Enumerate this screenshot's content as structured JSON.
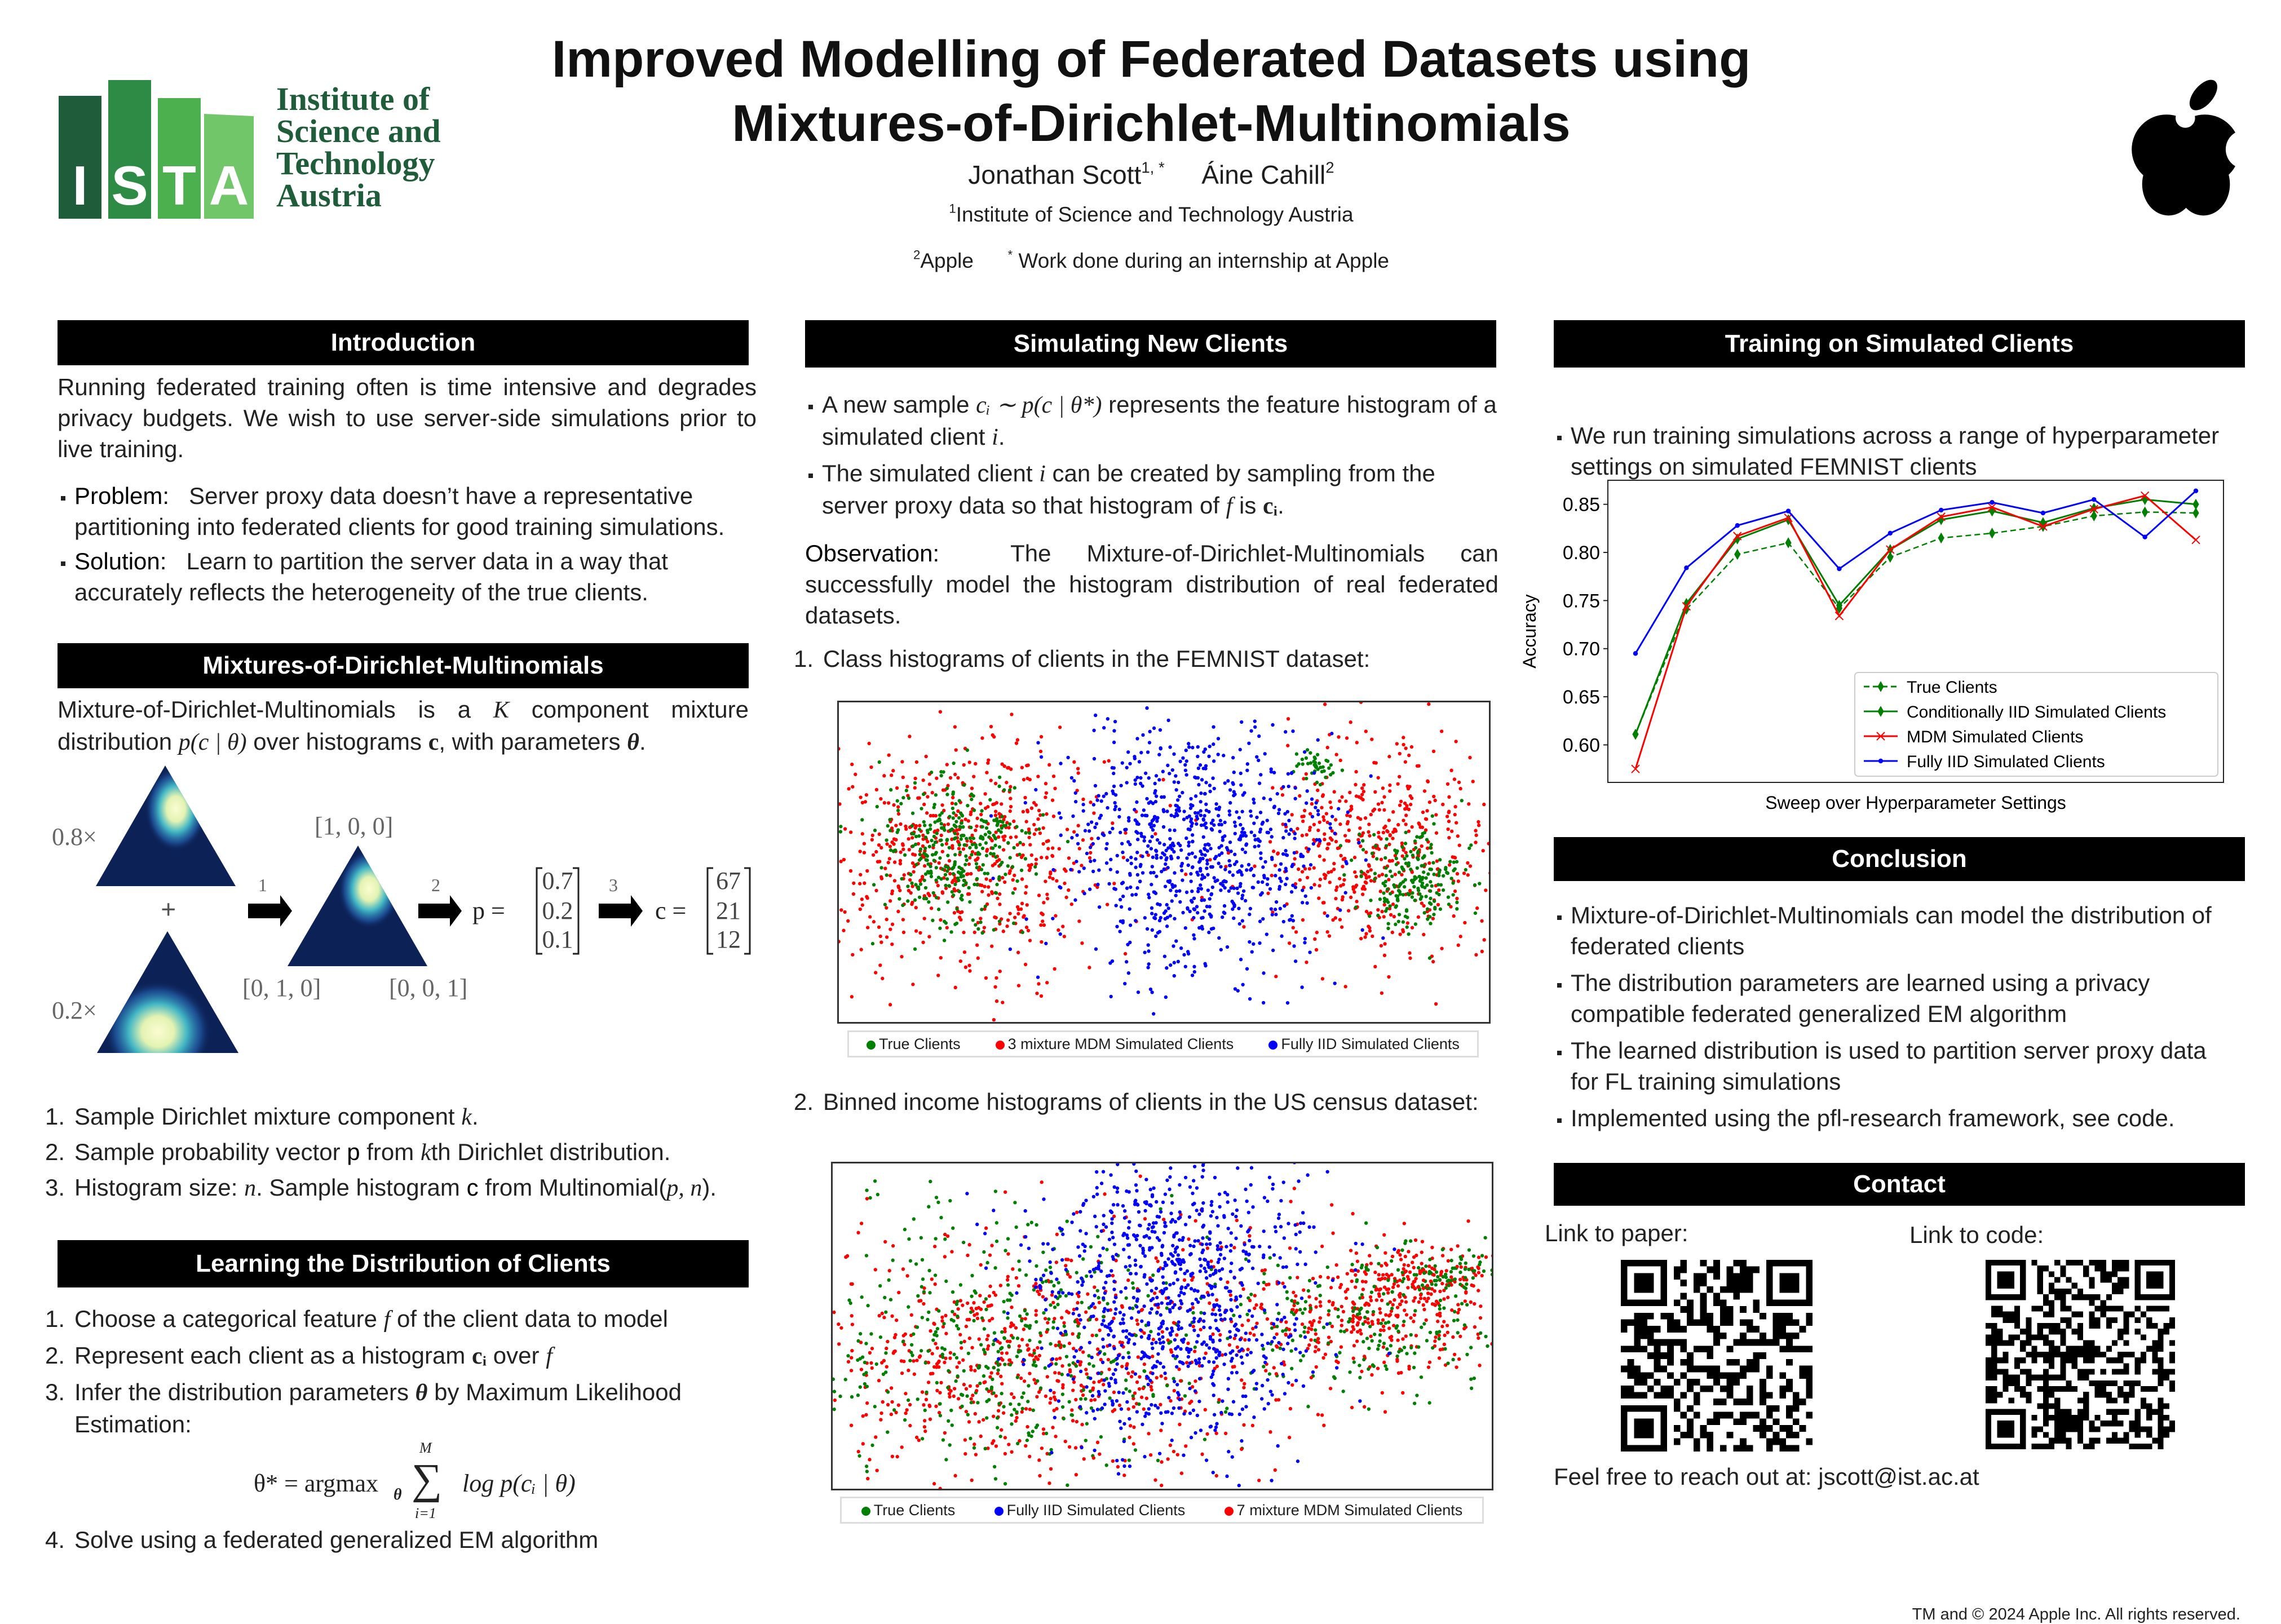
{
  "header": {
    "title_line1": "Improved Modelling of Federated Datasets using",
    "title_line2": "Mixtures-of-Dirichlet-Multinomials",
    "author1": "Jonathan Scott",
    "author1_sup": "1, *",
    "author2": "Áine Cahill",
    "author2_sup": "2",
    "affil1_sup": "1",
    "affil1": "Institute of Science and Technology Austria",
    "affil2_sup": "2",
    "affil2": "Apple",
    "note_sup": "*",
    "note": "Work done during an internship at Apple"
  },
  "logos": {
    "ista_letters": [
      "I",
      "S",
      "T",
      "A"
    ],
    "ista_name": [
      "Institute of",
      "Science and",
      "Technology",
      "Austria"
    ],
    "colors": {
      "dark": "#1f5c3a",
      "mid": "#2e8b45",
      "light": "#4cb04f",
      "lighter": "#72c66a"
    }
  },
  "intro": {
    "heading": "Introduction",
    "text": "Running federated training often is time intensive and degrades privacy budgets.  We wish to use server-side simulations prior to live training.",
    "problem_label": "Problem:",
    "problem_text": "Server proxy data doesn’t have a representative partitioning into federated clients for good training simulations.",
    "solution_label": "Solution:",
    "solution_text": "Learn to partition the server data in a way that accurately reflects the heterogeneity of the true clients."
  },
  "mdm": {
    "heading": "Mixtures-of-Dirichlet-Multinomials",
    "text_a": "Mixture-of-Dirichlet-Multinomials is a ",
    "text_k": "K",
    "text_b": " component mixture distribution ",
    "text_p": "p(c | θ)",
    "text_c": " over histograms ",
    "text_cvar": "c",
    "text_d": ", with parameters ",
    "text_theta": "θ",
    "text_e": ".",
    "diagram": {
      "weight1": "0.8×",
      "plus": "+",
      "weight2": "0.2×",
      "step1": "1",
      "step2": "2",
      "step3": "3",
      "vertex_top": "[1, 0, 0]",
      "vertex_left": "[0, 1, 0]",
      "vertex_right": "[0, 0, 1]",
      "p_label": "p =",
      "p_values": [
        "0.7",
        "0.2",
        "0.1"
      ],
      "c_label": "c =",
      "c_values": [
        "67",
        "21",
        "12"
      ]
    },
    "steps": [
      {
        "n": "1.",
        "a": "Sample Dirichlet mixture component ",
        "m": "k",
        "b": "."
      },
      {
        "n": "2.",
        "a": "Sample probability vector ",
        "m": "p",
        "b": " from ",
        "m2": "k",
        "c": "th Dirichlet distribution."
      },
      {
        "n": "3.",
        "a": "Histogram size: ",
        "m": "n",
        "b": ".  Sample histogram ",
        "m2": "c",
        "c": " from Multinomial(",
        "m3": "p, n",
        "d": ")."
      }
    ]
  },
  "learning": {
    "heading": "Learning the Distribution of Clients",
    "items": [
      {
        "n": "1.",
        "a": "Choose a categorical feature ",
        "m": "f",
        "b": " of the client data to model"
      },
      {
        "n": "2.",
        "a": "Represent each client as a histogram ",
        "m": "cᵢ",
        "b": " over ",
        "m2": "f"
      },
      {
        "n": "3.",
        "a": "Infer the distribution parameters ",
        "m": "θ",
        "b": " by Maximum Likelihood Estimation:"
      },
      {
        "n": "4.",
        "a": "Solve using a federated generalized EM algorithm"
      }
    ],
    "equation_lhs": "θ* = argmax",
    "equation_sub": "θ",
    "equation_sum_top": "M",
    "equation_sum": "∑",
    "equation_sum_bottom": "i=1",
    "equation_rhs": "log p(cᵢ | θ)"
  },
  "simulating": {
    "heading": "Simulating New Clients",
    "bullet1_a": "A new sample ",
    "bullet1_m": "cᵢ ∼ p(c | θ*)",
    "bullet1_b": " represents the feature histogram of a simulated client ",
    "bullet1_m2": "i",
    "bullet1_c": ".",
    "bullet2_a": "The simulated client ",
    "bullet2_m": "i",
    "bullet2_b": " can be created by sampling from the server proxy data so that histogram of ",
    "bullet2_m2": "f",
    "bullet2_c": " is ",
    "bullet2_m3": "cᵢ",
    "bullet2_d": ".",
    "observation_label": "Observation:",
    "observation_text": "The Mixture-of-Dirichlet-Multinomials can successfully model the histogram distribution of real federated datasets.",
    "item1_n": "1.",
    "item1": "Class histograms of clients in the FEMNIST dataset:",
    "item2_n": "2.",
    "item2": "Binned income histograms of clients in the US census dataset:",
    "plot1_legend": [
      {
        "label": "True Clients",
        "color": "#008000"
      },
      {
        "label": "3 mixture MDM Simulated Clients",
        "color": "#ff0000"
      },
      {
        "label": "Fully IID Simulated Clients",
        "color": "#0000ff"
      }
    ],
    "plot2_legend": [
      {
        "label": "True Clients",
        "color": "#008000"
      },
      {
        "label": "Fully IID Simulated Clients",
        "color": "#0000ff"
      },
      {
        "label": "7 mixture MDM Simulated Clients",
        "color": "#ff0000"
      }
    ]
  },
  "training": {
    "heading": "Training on Simulated Clients",
    "bullet": "We run training simulations across a range of hyperparameter settings on simulated FEMNIST clients"
  },
  "chart_data": {
    "type": "line",
    "title": "",
    "xlabel": "Sweep over Hyperparameter Settings",
    "ylabel": "Accuracy",
    "x": [
      1,
      2,
      3,
      4,
      5,
      6,
      7,
      8,
      9,
      10,
      11,
      12
    ],
    "ylim": [
      0.561,
      0.875
    ],
    "yticks": [
      "0.60",
      "0.65",
      "0.70",
      "0.75",
      "0.80",
      "0.85"
    ],
    "grid": false,
    "legend_position": "bottom-right",
    "series": [
      {
        "name": "True Clients",
        "color": "#008000",
        "style": "dashed",
        "marker": "diamond",
        "values": [
          0.611,
          0.741,
          0.798,
          0.81,
          0.742,
          0.795,
          0.815,
          0.82,
          0.827,
          0.838,
          0.842,
          0.841
        ]
      },
      {
        "name": "Conditionally IID Simulated Clients",
        "color": "#008000",
        "style": "solid",
        "marker": "diamond",
        "values": [
          0.611,
          0.747,
          0.814,
          0.834,
          0.745,
          0.803,
          0.834,
          0.843,
          0.831,
          0.846,
          0.855,
          0.85
        ]
      },
      {
        "name": "MDM Simulated Clients",
        "color": "#ff0000",
        "style": "solid",
        "marker": "x",
        "values": [
          0.575,
          0.744,
          0.817,
          0.836,
          0.734,
          0.803,
          0.837,
          0.847,
          0.827,
          0.845,
          0.859,
          0.813
        ]
      },
      {
        "name": "Fully IID Simulated Clients",
        "color": "#0000ff",
        "style": "solid",
        "marker": "dot",
        "values": [
          0.695,
          0.784,
          0.828,
          0.843,
          0.783,
          0.82,
          0.844,
          0.852,
          0.841,
          0.855,
          0.816,
          0.864
        ]
      }
    ]
  },
  "conclusion": {
    "heading": "Conclusion",
    "bullets": [
      "Mixture-of-Dirichlet-Multinomials can model the distribution of federated clients",
      "The distribution parameters are learned using a privacy compatible federated generalized EM algorithm",
      "The learned distribution is used to partition server proxy data for FL training simulations",
      "Implemented using the pfl-research framework, see code."
    ]
  },
  "contact": {
    "heading": "Contact",
    "paper_label": "Link to paper:",
    "code_label": "Link to code:",
    "reach_out": "Feel free to reach out at:  jscott@ist.ac.at"
  },
  "footer": {
    "copyright": "TM and © 2024 Apple Inc. All rights reserved."
  }
}
